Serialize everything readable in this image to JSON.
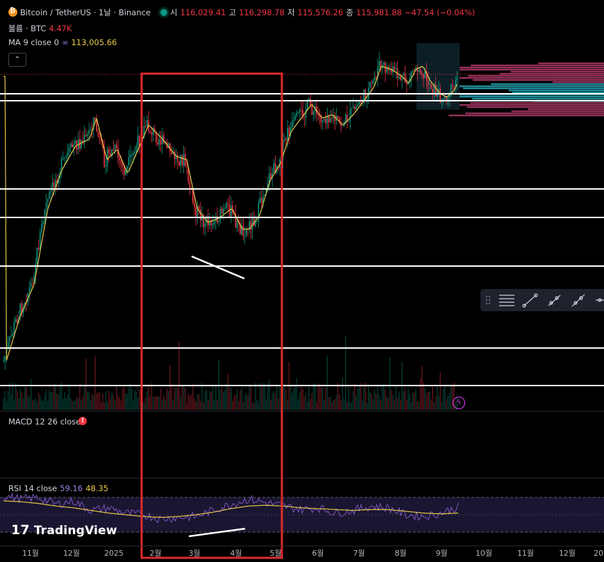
{
  "header": {
    "symbol_title": "Bitcoin / TetherUS · 1날 · Binance",
    "open_label": "시",
    "open_value": "116,029.41",
    "high_label": "고",
    "high_value": "116,298.78",
    "low_label": "저",
    "low_value": "115,576.26",
    "close_label": "종",
    "close_value": "115,981.88",
    "change": "−47.54 (−0.04%)"
  },
  "volume_legend": {
    "label": "볼륨 · BTC",
    "value": "4.47K"
  },
  "ma_legend": {
    "label": "MA 9 close 0",
    "value": "113,005.66"
  },
  "macd_legend": {
    "label": "MACD 12 26 close"
  },
  "rsi_legend": {
    "label": "RSI 14 close",
    "value1": "59.16",
    "value2": "48.35"
  },
  "branding": {
    "logo_text": "TradingView"
  },
  "colors": {
    "up": "#089981",
    "down": "#f23645",
    "ma": "#e6c84a",
    "rsi": "#7e57c2",
    "box": "#e22a2a"
  },
  "chart_data": {
    "type": "candlestick",
    "x_axis_labels": [
      "11월",
      "12월",
      "2025",
      "2월",
      "3월",
      "4월",
      "5월",
      "6월",
      "7월",
      "8월",
      "9월",
      "10월",
      "11월",
      "12월",
      "20"
    ],
    "price_series_approx": [
      {
        "month": "2024-11-start",
        "close": 69000
      },
      {
        "month": "2024-11-mid",
        "close": 90000
      },
      {
        "month": "2024-12-start",
        "close": 97000
      },
      {
        "month": "2024-12-mid",
        "close": 104000
      },
      {
        "month": "2025-01",
        "close": 94000
      },
      {
        "month": "2025-01-late",
        "close": 105000
      },
      {
        "month": "2025-02",
        "close": 96000
      },
      {
        "month": "2025-03",
        "close": 82000
      },
      {
        "month": "2025-03-late",
        "close": 84000
      },
      {
        "month": "2025-04",
        "close": 77000
      },
      {
        "month": "2025-04-late",
        "close": 94000
      },
      {
        "month": "2025-05",
        "close": 103000
      },
      {
        "month": "2025-05-late",
        "close": 108000
      },
      {
        "month": "2025-06",
        "close": 105000
      },
      {
        "month": "2025-07",
        "close": 118000
      },
      {
        "month": "2025-08",
        "close": 117000
      },
      {
        "month": "2025-08-mid",
        "close": 123000
      },
      {
        "month": "2025-09",
        "close": 110000
      },
      {
        "month": "2025-09-mid",
        "close": 116000
      }
    ],
    "rsi_series_approx": [
      72,
      68,
      70,
      62,
      66,
      55,
      58,
      52,
      50,
      45,
      47,
      48,
      55,
      62,
      68,
      64,
      60,
      56,
      58,
      52,
      55,
      60,
      58,
      50,
      48,
      52,
      59
    ],
    "rsi_ma_series_approx": [
      66,
      65,
      63,
      60,
      58,
      55,
      52,
      50,
      48,
      47,
      48,
      50,
      53,
      57,
      60,
      61,
      60,
      58,
      57,
      56,
      55,
      56,
      56,
      54,
      52,
      51,
      52
    ],
    "horizontal_levels_count": 8,
    "annotation": "highlight box from 2월 to 5월 with bullish divergence lines on price and RSI"
  }
}
